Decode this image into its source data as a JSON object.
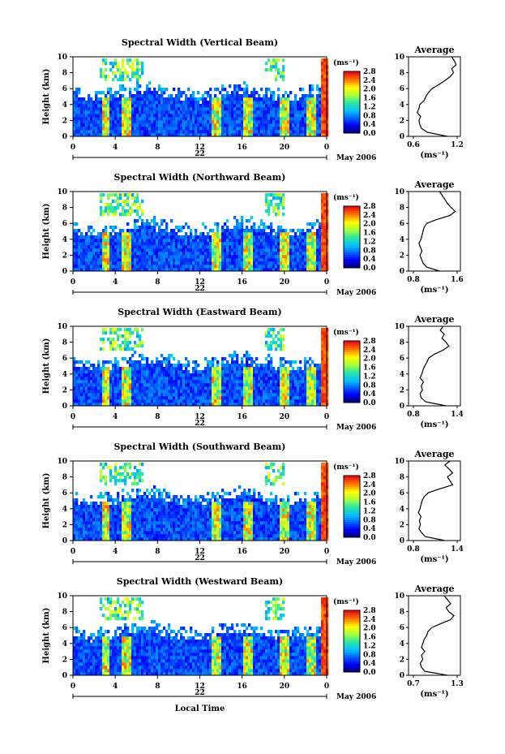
{
  "chart_data": [
    {
      "type": "heatmap",
      "title": "Spectral Width (Vertical Beam)",
      "ylabel": "Height (km)",
      "ylim": [
        0,
        10
      ],
      "xlim": [
        0,
        24
      ],
      "x_ticks": [
        "0",
        "4",
        "8",
        "12",
        "16",
        "20",
        "0"
      ],
      "y_ticks": [
        "0",
        "2",
        "4",
        "6",
        "8",
        "10"
      ],
      "date_label": "22",
      "month_label": "May 2006",
      "colorbar": {
        "unit": "(ms⁻¹)",
        "ticks": [
          "0.0",
          "0.4",
          "0.8",
          "1.2",
          "1.6",
          "2.0",
          "2.4",
          "2.8"
        ]
      },
      "average_profile": {
        "title": "Average",
        "xlabel": "(ms⁻¹)",
        "xlim": [
          0.6,
          1.2
        ],
        "x_ticks": [
          "0.6",
          "1.2"
        ],
        "y_ticks": [
          "0",
          "2",
          "4",
          "6",
          "8",
          "10"
        ],
        "heights": [
          0,
          0.5,
          1,
          1.5,
          2,
          2.5,
          3,
          3.5,
          4,
          4.5,
          5,
          5.5,
          6,
          6.5,
          7,
          7.5,
          8,
          8.5,
          9,
          9.5,
          10
        ],
        "values": [
          1.05,
          0.82,
          0.75,
          0.73,
          0.72,
          0.74,
          0.7,
          0.72,
          0.73,
          0.78,
          0.8,
          0.83,
          0.87,
          0.95,
          1.02,
          1.08,
          1.12,
          1.1,
          1.15,
          1.13,
          1.1
        ]
      }
    },
    {
      "type": "heatmap",
      "title": "Spectral Width (Northward Beam)",
      "ylabel": "Height (km)",
      "ylim": [
        0,
        10
      ],
      "xlim": [
        0,
        24
      ],
      "x_ticks": [
        "0",
        "4",
        "8",
        "12",
        "16",
        "20",
        "0"
      ],
      "y_ticks": [
        "0",
        "2",
        "4",
        "6",
        "8",
        "10"
      ],
      "date_label": "22",
      "month_label": "May 2006",
      "colorbar": {
        "unit": "(ms⁻¹)",
        "ticks": [
          "0.0",
          "0.4",
          "0.8",
          "1.2",
          "1.6",
          "2.0",
          "2.4",
          "2.8"
        ]
      },
      "average_profile": {
        "title": "Average",
        "xlabel": "(ms⁻¹)",
        "xlim": [
          0.6,
          1.6
        ],
        "x_ticks": [
          "0.8",
          "1.6"
        ],
        "y_ticks": [
          "0",
          "2",
          "4",
          "6",
          "8",
          "10"
        ],
        "heights": [
          0,
          0.5,
          1,
          1.5,
          2,
          2.5,
          3,
          3.5,
          4,
          4.5,
          5,
          5.5,
          6,
          6.5,
          7,
          7.5,
          8,
          8.5,
          9,
          9.5,
          10
        ],
        "values": [
          1.2,
          0.95,
          0.88,
          0.85,
          0.82,
          0.86,
          0.83,
          0.8,
          0.84,
          0.86,
          0.88,
          0.9,
          0.95,
          1.15,
          1.4,
          1.5,
          1.42,
          1.35,
          1.3,
          1.25,
          1.2
        ]
      }
    },
    {
      "type": "heatmap",
      "title": "Spectral Width (Eastward Beam)",
      "ylabel": "Height (km)",
      "ylim": [
        0,
        10
      ],
      "xlim": [
        0,
        24
      ],
      "x_ticks": [
        "0",
        "4",
        "8",
        "12",
        "16",
        "20",
        "0"
      ],
      "y_ticks": [
        "0",
        "2",
        "4",
        "6",
        "8",
        "10"
      ],
      "date_label": "22",
      "month_label": "May 2006",
      "colorbar": {
        "unit": "(ms⁻¹)",
        "ticks": [
          "0.0",
          "0.4",
          "0.8",
          "1.2",
          "1.6",
          "2.0",
          "2.4",
          "2.8"
        ]
      },
      "average_profile": {
        "title": "Average",
        "xlabel": "(ms⁻¹)",
        "xlim": [
          0.6,
          1.5
        ],
        "x_ticks": [
          "0.8",
          "1.4"
        ],
        "y_ticks": [
          "0",
          "2",
          "4",
          "6",
          "8",
          "10"
        ],
        "heights": [
          0,
          0.5,
          1,
          1.5,
          2,
          2.5,
          3,
          3.5,
          4,
          4.5,
          5,
          5.5,
          6,
          6.5,
          7,
          7.5,
          8,
          8.5,
          9,
          9.5,
          10
        ],
        "values": [
          1.25,
          0.9,
          0.82,
          0.8,
          0.84,
          0.82,
          0.86,
          0.8,
          0.83,
          0.85,
          0.88,
          0.92,
          0.95,
          1.05,
          1.2,
          1.3,
          1.25,
          1.18,
          1.22,
          1.15,
          1.2
        ]
      }
    },
    {
      "type": "heatmap",
      "title": "Spectral Width (Southward Beam)",
      "ylabel": "Height (km)",
      "ylim": [
        0,
        10
      ],
      "xlim": [
        0,
        24
      ],
      "x_ticks": [
        "0",
        "4",
        "8",
        "12",
        "16",
        "20",
        "0"
      ],
      "y_ticks": [
        "0",
        "2",
        "4",
        "6",
        "8",
        "10"
      ],
      "date_label": "22",
      "month_label": "May 2006",
      "colorbar": {
        "unit": "(ms⁻¹)",
        "ticks": [
          "0.0",
          "0.4",
          "0.8",
          "1.2",
          "1.6",
          "2.0",
          "2.4",
          "2.8"
        ]
      },
      "average_profile": {
        "title": "Average",
        "xlabel": "(ms⁻¹)",
        "xlim": [
          0.6,
          1.6
        ],
        "x_ticks": [
          "0.8",
          "1.4"
        ],
        "y_ticks": [
          "0",
          "2",
          "4",
          "6",
          "8",
          "10"
        ],
        "heights": [
          0,
          0.5,
          1,
          1.5,
          2,
          2.5,
          3,
          3.5,
          4,
          4.5,
          5,
          5.5,
          6,
          6.5,
          7,
          7.5,
          8,
          8.5,
          9,
          9.5,
          10
        ],
        "values": [
          1.3,
          0.92,
          0.85,
          0.8,
          0.83,
          0.81,
          0.84,
          0.79,
          0.82,
          0.84,
          0.86,
          0.9,
          0.98,
          1.2,
          1.45,
          1.4,
          1.35,
          1.45,
          1.38,
          1.3,
          1.4
        ]
      }
    },
    {
      "type": "heatmap",
      "title": "Spectral Width (Westward Beam)",
      "ylabel": "Height (km)",
      "xlabel": "Local Time",
      "ylim": [
        0,
        10
      ],
      "xlim": [
        0,
        24
      ],
      "x_ticks": [
        "0",
        "4",
        "8",
        "12",
        "16",
        "20",
        "0"
      ],
      "y_ticks": [
        "0",
        "2",
        "4",
        "6",
        "8",
        "10"
      ],
      "date_label": "22",
      "month_label": "May 2006",
      "colorbar": {
        "unit": "(ms⁻¹)",
        "ticks": [
          "0.0",
          "0.4",
          "0.8",
          "1.2",
          "1.6",
          "2.0",
          "2.4",
          "2.8"
        ]
      },
      "average_profile": {
        "title": "Average",
        "xlabel": "(ms⁻¹)",
        "xlim": [
          0.6,
          1.4
        ],
        "x_ticks": [
          "0.7",
          "1.3"
        ],
        "y_ticks": [
          "0",
          "2",
          "4",
          "6",
          "8",
          "10"
        ],
        "heights": [
          0,
          0.5,
          1,
          1.5,
          2,
          2.5,
          3,
          3.5,
          4,
          4.5,
          5,
          5.5,
          6,
          6.5,
          7,
          7.5,
          8,
          8.5,
          9,
          9.5,
          10
        ],
        "values": [
          1.2,
          0.85,
          0.8,
          0.78,
          0.82,
          0.8,
          0.85,
          0.8,
          0.82,
          0.84,
          0.88,
          0.9,
          0.96,
          1.1,
          1.25,
          1.3,
          1.22,
          1.18,
          1.25,
          1.2,
          1.15
        ]
      }
    }
  ]
}
